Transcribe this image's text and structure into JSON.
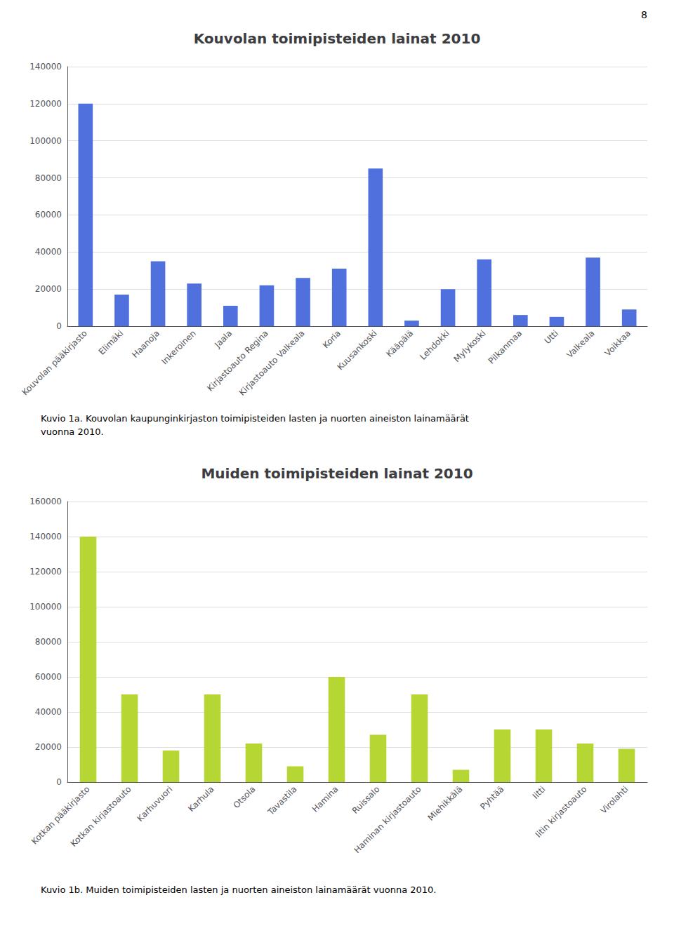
{
  "annotations": [
    "8"
  ],
  "chart_data": [
    {
      "type": "bar",
      "title": "Kouvolan toimipisteiden lainat 2010",
      "categories": [
        "Kouvolan pääkirjasto",
        "Elimäki",
        "Haanoja",
        "Inkeroinen",
        "Jaala",
        "Kirjastoauto Regina",
        "Kirjastoauto Valkeala",
        "Koria",
        "Kuusankoski",
        "Kääpälä",
        "Lehdokki",
        "Mylykoski",
        "Pilkanmaa",
        "Utti",
        "Valkeala",
        "Voikkaa"
      ],
      "values": [
        120000,
        17000,
        35000,
        23000,
        11000,
        22000,
        26000,
        31000,
        85000,
        3000,
        20000,
        36000,
        6000,
        5000,
        37000,
        9000
      ],
      "ylim": [
        0,
        140000
      ],
      "yticks": [
        0,
        20000,
        40000,
        60000,
        80000,
        100000,
        120000,
        140000
      ],
      "grid": true,
      "annotations": [
        "Kuvio 1a. Kouvolan kaupunginkirjaston toimipisteiden lasten ja nuorten aineiston lainamäärät",
        "vuonna 2010."
      ]
    },
    {
      "type": "bar",
      "title": "Muiden toimipisteiden lainat 2010",
      "categories": [
        "Kotkan pääkirjasto",
        "Kotkan kirjastoauto",
        "Karhuvuori",
        "Karhula",
        "Otsola",
        "Tavastila",
        "Hamina",
        "Ruissalo",
        "Haminan kirjastoauto",
        "Miehikkälä",
        "Pyhtää",
        "Iitti",
        "Iitin kirjastoauto",
        "Virolahti"
      ],
      "values": [
        140000,
        50000,
        18000,
        50000,
        22000,
        9000,
        60000,
        27000,
        50000,
        7000,
        30000,
        30000,
        22000,
        19000
      ],
      "ylim": [
        0,
        160000
      ],
      "yticks": [
        0,
        20000,
        40000,
        60000,
        80000,
        100000,
        120000,
        140000,
        160000
      ],
      "grid": true,
      "annotations": [
        "Kuvio 1b. Muiden toimipisteiden lasten ja nuorten aineiston lainamäärät vuonna 2010."
      ]
    }
  ]
}
